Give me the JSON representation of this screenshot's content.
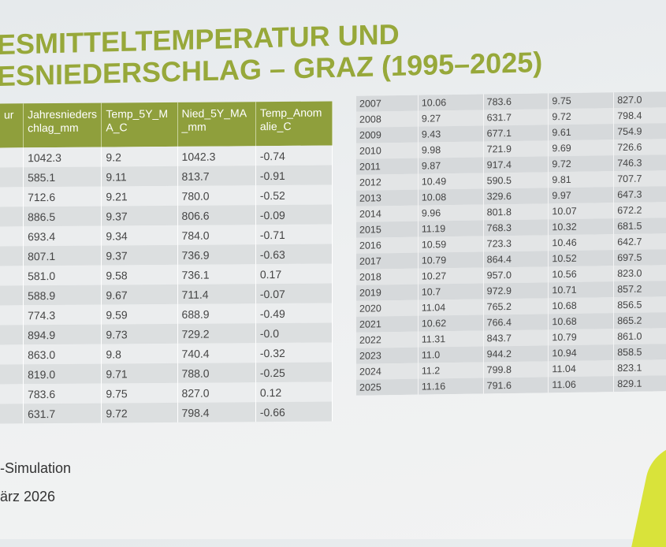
{
  "title_lines": [
    "ESMITTELTEMPERATUR UND",
    "ESNIEDERSCHLAG – GRAZ (1995–2025)"
  ],
  "left_table": {
    "header": [
      "ur",
      "Jahresniederschlag_mm",
      "Temp_5Y_MA_C",
      "Nied_5Y_MA_mm",
      "Temp_Anomalie_C"
    ],
    "rows": [
      [
        "1042.3",
        "9.2",
        "1042.3",
        "-0.74"
      ],
      [
        "585.1",
        "9.11",
        "813.7",
        "-0.91"
      ],
      [
        "712.6",
        "9.21",
        "780.0",
        "-0.52"
      ],
      [
        "886.5",
        "9.37",
        "806.6",
        "-0.09"
      ],
      [
        "693.4",
        "9.34",
        "784.0",
        "-0.71"
      ],
      [
        "807.1",
        "9.37",
        "736.9",
        "-0.63"
      ],
      [
        "581.0",
        "9.58",
        "736.1",
        "0.17"
      ],
      [
        "588.9",
        "9.67",
        "711.4",
        "-0.07"
      ],
      [
        "774.3",
        "9.59",
        "688.9",
        "-0.49"
      ],
      [
        "894.9",
        "9.73",
        "729.2",
        "-0.0"
      ],
      [
        "863.0",
        "9.8",
        "740.4",
        "-0.32"
      ],
      [
        "819.0",
        "9.71",
        "788.0",
        "-0.25"
      ],
      [
        "783.6",
        "9.75",
        "827.0",
        "0.12"
      ],
      [
        "631.7",
        "9.72",
        "798.4",
        "-0.66"
      ]
    ]
  },
  "right_table": {
    "rows": [
      [
        "2007",
        "10.06",
        "783.6",
        "9.75",
        "827.0"
      ],
      [
        "2008",
        "9.27",
        "631.7",
        "9.72",
        "798.4"
      ],
      [
        "2009",
        "9.43",
        "677.1",
        "9.61",
        "754.9"
      ],
      [
        "2010",
        "9.98",
        "721.9",
        "9.69",
        "726.6"
      ],
      [
        "2011",
        "9.87",
        "917.4",
        "9.72",
        "746.3"
      ],
      [
        "2012",
        "10.49",
        "590.5",
        "9.81",
        "707.7"
      ],
      [
        "2013",
        "10.08",
        "329.6",
        "9.97",
        "647.3"
      ],
      [
        "2014",
        "9.96",
        "801.8",
        "10.07",
        "672.2"
      ],
      [
        "2015",
        "11.19",
        "768.3",
        "10.32",
        "681.5"
      ],
      [
        "2016",
        "10.59",
        "723.3",
        "10.46",
        "642.7"
      ],
      [
        "2017",
        "10.79",
        "864.4",
        "10.52",
        "697.5"
      ],
      [
        "2018",
        "10.27",
        "957.0",
        "10.56",
        "823.0"
      ],
      [
        "2019",
        "10.7",
        "972.9",
        "10.71",
        "857.2"
      ],
      [
        "2020",
        "11.04",
        "765.2",
        "10.68",
        "856.5"
      ],
      [
        "2021",
        "10.62",
        "766.4",
        "10.68",
        "865.2"
      ],
      [
        "2022",
        "11.31",
        "843.7",
        "10.79",
        "861.0"
      ],
      [
        "2023",
        "11.0",
        "944.2",
        "10.94",
        "858.5"
      ],
      [
        "2024",
        "11.2",
        "799.8",
        "11.04",
        "823.1"
      ],
      [
        "2025",
        "11.16",
        "791.6",
        "11.06",
        "829.1"
      ]
    ]
  },
  "footer_lines": [
    "-Simulation",
    "ärz 2026"
  ]
}
